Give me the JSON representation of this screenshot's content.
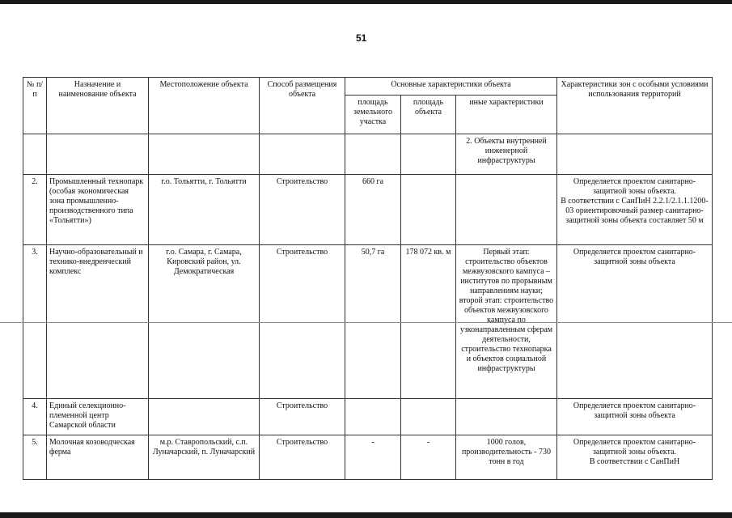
{
  "page_number": "51",
  "table": {
    "headers": {
      "num": "№ п/п",
      "name": "Назначение и наименование объекта",
      "location": "Местоположение объекта",
      "method": "Способ размещения объекта",
      "main_chars": "Основные характеристики объекта",
      "land_area": "площадь земельного участка",
      "object_area": "площадь объекта",
      "other_chars": "иные характеристики",
      "zones": "Характеристики зон с особыми условиями использования территорий"
    },
    "rows": [
      {
        "num": "",
        "name": "",
        "location": "",
        "method": "",
        "land_area": "",
        "object_area": "",
        "other": "2. Объекты внутренней инженерной инфраструктуры",
        "zones": ""
      },
      {
        "num": "2.",
        "name": "Промышленный технопарк (особая экономическая зона промышленно-производственного типа «Тольятти»)",
        "location": "г.о. Тольятти, г. Тольятти",
        "method": "Строительство",
        "land_area": "660 га",
        "object_area": "",
        "other": "",
        "zones": "Определяется проектом санитарно-защитной зоны объекта.\nВ соответствии с СанПиН 2.2.1/2.1.1.1200-03 ориентировочный размер санитарно-защитной зоны объекта составляет 50 м"
      },
      {
        "num": "3.",
        "name": "Научно-образовательный и технико-внедренческий комплекс",
        "location": "г.о. Самара, г. Самара, Кировский район, ул. Демократическая",
        "method": "Строительство",
        "land_area": "50,7 га",
        "object_area": "178 072 кв. м",
        "other": "Первый этап: строительство объектов межвузовского кампуса – институтов по прорывным направлениям науки; второй этап: строительство объектов межвузовского кампуса по узконаправленным сферам деятельности, строительство технопарка и объектов социальной инфраструктуры",
        "zones": "Определяется проектом санитарно-защитной зоны объекта"
      },
      {
        "num": "4.",
        "name": "Единый селекционно-племенной центр Самарской области",
        "location": "",
        "method": "Строительство",
        "land_area": "",
        "object_area": "",
        "other": "",
        "zones": "Определяется проектом санитарно-защитной зоны объекта"
      },
      {
        "num": "5.",
        "name": "Молочная козоводческая ферма",
        "location": "м.р. Ставропольский, с.п. Луначарский, п. Луначарский",
        "method": "Строительство",
        "land_area": "-",
        "object_area": "-",
        "other": "1000 голов, производительность - 730 тонн в год",
        "zones": "Определяется проектом санитарно-защитной зоны объекта.\nВ соответствии с СанПиН"
      }
    ]
  }
}
